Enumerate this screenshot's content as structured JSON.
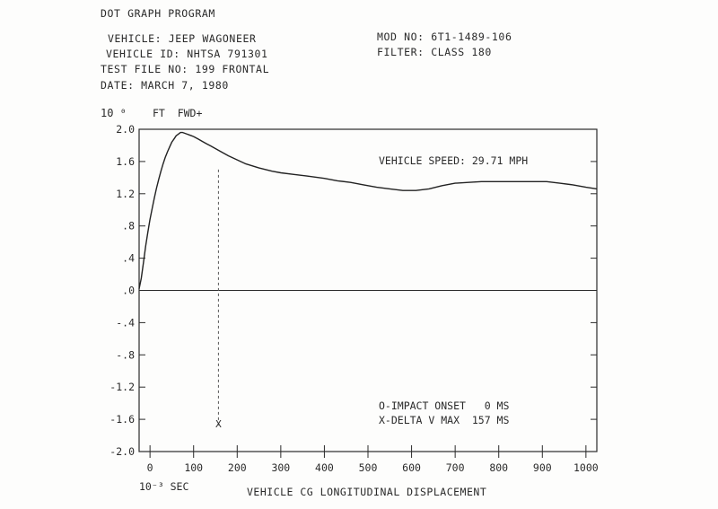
{
  "header": {
    "program": "DOT GRAPH PROGRAM",
    "vehicle": "VEHICLE: JEEP WAGONEER",
    "vehicle_id": "VEHICLE ID: NHTSA 791301",
    "test_file": "TEST FILE NO: 199 FRONTAL",
    "date": "DATE: MARCH 7, 1980",
    "mod_no": "MOD NO: 6T1-1489-106",
    "filter": "FILTER: CLASS 180"
  },
  "chart_data": {
    "type": "line",
    "title": "",
    "xlabel": "VEHICLE CG LONGITUDINAL DISPLACEMENT",
    "x_unit_label": "10⁻³ SEC",
    "y_scale_label": "10 ⁰",
    "y_unit_label": "FT  FWD+",
    "xlim": [
      -25,
      1025
    ],
    "ylim": [
      -2.0,
      2.0
    ],
    "x_ticks": [
      0,
      100,
      200,
      300,
      400,
      500,
      600,
      700,
      800,
      900,
      1000
    ],
    "x_tick_labels": [
      "0",
      "100",
      "200",
      "300",
      "400",
      "500",
      "600",
      "700",
      "800",
      "900",
      "1000"
    ],
    "y_ticks": [
      2.0,
      1.6,
      1.2,
      0.8,
      0.4,
      0.0,
      -0.4,
      -0.8,
      -1.2,
      -1.6,
      -2.0
    ],
    "y_tick_labels": [
      "2.0",
      "1.6",
      "1.2",
      ".8",
      ".4",
      ".0",
      "-.4",
      "-.8",
      "-1.2",
      "-1.6",
      "-2.0"
    ],
    "grid": false,
    "series": [
      {
        "x": [
          -25,
          -20,
          -15,
          -10,
          -5,
          0,
          5,
          10,
          15,
          20,
          25,
          30,
          35,
          40,
          45,
          50,
          55,
          60,
          65,
          70,
          75,
          80,
          85,
          90,
          95,
          100,
          110,
          120,
          130,
          140,
          150,
          160,
          180,
          200,
          220,
          250,
          280,
          300,
          330,
          360,
          400,
          430,
          460,
          490,
          520,
          550,
          580,
          610,
          640,
          670,
          700,
          730,
          760,
          790,
          820,
          850,
          880,
          910,
          940,
          970,
          1000,
          1025
        ],
        "y": [
          0.02,
          0.15,
          0.35,
          0.55,
          0.72,
          0.88,
          1.02,
          1.15,
          1.27,
          1.38,
          1.48,
          1.57,
          1.65,
          1.72,
          1.78,
          1.84,
          1.88,
          1.92,
          1.94,
          1.96,
          1.96,
          1.95,
          1.94,
          1.93,
          1.92,
          1.91,
          1.88,
          1.85,
          1.82,
          1.79,
          1.76,
          1.73,
          1.67,
          1.62,
          1.57,
          1.52,
          1.48,
          1.46,
          1.44,
          1.42,
          1.39,
          1.36,
          1.34,
          1.31,
          1.28,
          1.26,
          1.24,
          1.24,
          1.26,
          1.3,
          1.33,
          1.34,
          1.35,
          1.35,
          1.35,
          1.35,
          1.35,
          1.35,
          1.33,
          1.31,
          1.28,
          1.26
        ]
      }
    ],
    "marker_line_x": 157,
    "marker_symbol": "X",
    "annotations": {
      "speed": "VEHICLE SPEED: 29.71 MPH",
      "impact_onset": "O-IMPACT ONSET   0 MS",
      "delta_v_max": "X-DELTA V MAX  157 MS"
    }
  }
}
